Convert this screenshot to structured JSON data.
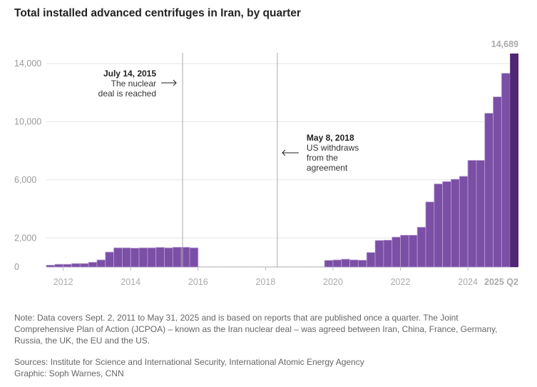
{
  "chart_data": {
    "type": "bar",
    "title": "Total installed advanced centrifuges in Iran, by quarter",
    "xlabel": "",
    "ylabel": "",
    "ylim": [
      0,
      14689
    ],
    "yticks": [
      0,
      2000,
      6000,
      10000,
      14000
    ],
    "ytick_labels": [
      "0",
      "2,000",
      "6,000",
      "10,000",
      "14,000"
    ],
    "xtick_labels": [
      "2012",
      "2014",
      "2016",
      "2018",
      "2020",
      "2022",
      "2024",
      "2025 Q2"
    ],
    "xtick_years": [
      2012,
      2014,
      2016,
      2018,
      2020,
      2022,
      2024,
      2025.25
    ],
    "start_quarter": "2011 Q3",
    "end_quarter": "2025 Q2",
    "values": [
      130,
      190,
      190,
      240,
      240,
      330,
      490,
      1030,
      1320,
      1320,
      1300,
      1320,
      1320,
      1350,
      1320,
      1360,
      1360,
      1320,
      0,
      0,
      0,
      0,
      0,
      0,
      0,
      0,
      0,
      0,
      0,
      0,
      0,
      0,
      0,
      460,
      490,
      540,
      490,
      470,
      1000,
      1830,
      1850,
      2060,
      2190,
      2190,
      2740,
      4480,
      5720,
      5880,
      6040,
      6240,
      7340,
      7340,
      10580,
      11710,
      13330,
      14689
    ],
    "last_value_label": "14,689",
    "colors": {
      "bar": "#7b4fa6",
      "last_bar": "#512673"
    },
    "annotations": [
      {
        "year": 2015.54,
        "date": "July 14, 2015",
        "text": [
          "The nuclear",
          "deal is reached"
        ],
        "arrow": "right"
      },
      {
        "year": 2018.35,
        "date": "May 8, 2018",
        "text": [
          "US withdraws",
          "from the",
          "agreement"
        ],
        "arrow": "left"
      }
    ]
  },
  "note": "Note: Data covers Sept. 2, 2011 to May 31, 2025 and is based on reports that are published once a quarter. The Joint Comprehensive Plan of Action (JCPOA) – known as the Iran nuclear deal – was agreed between Iran, China, France, Germany, Russia, the UK, the EU and the US.",
  "sources": "Sources: Institute for Science and International Security, International Atomic Energy Agency",
  "graphic": "Graphic: Soph Warnes, CNN"
}
